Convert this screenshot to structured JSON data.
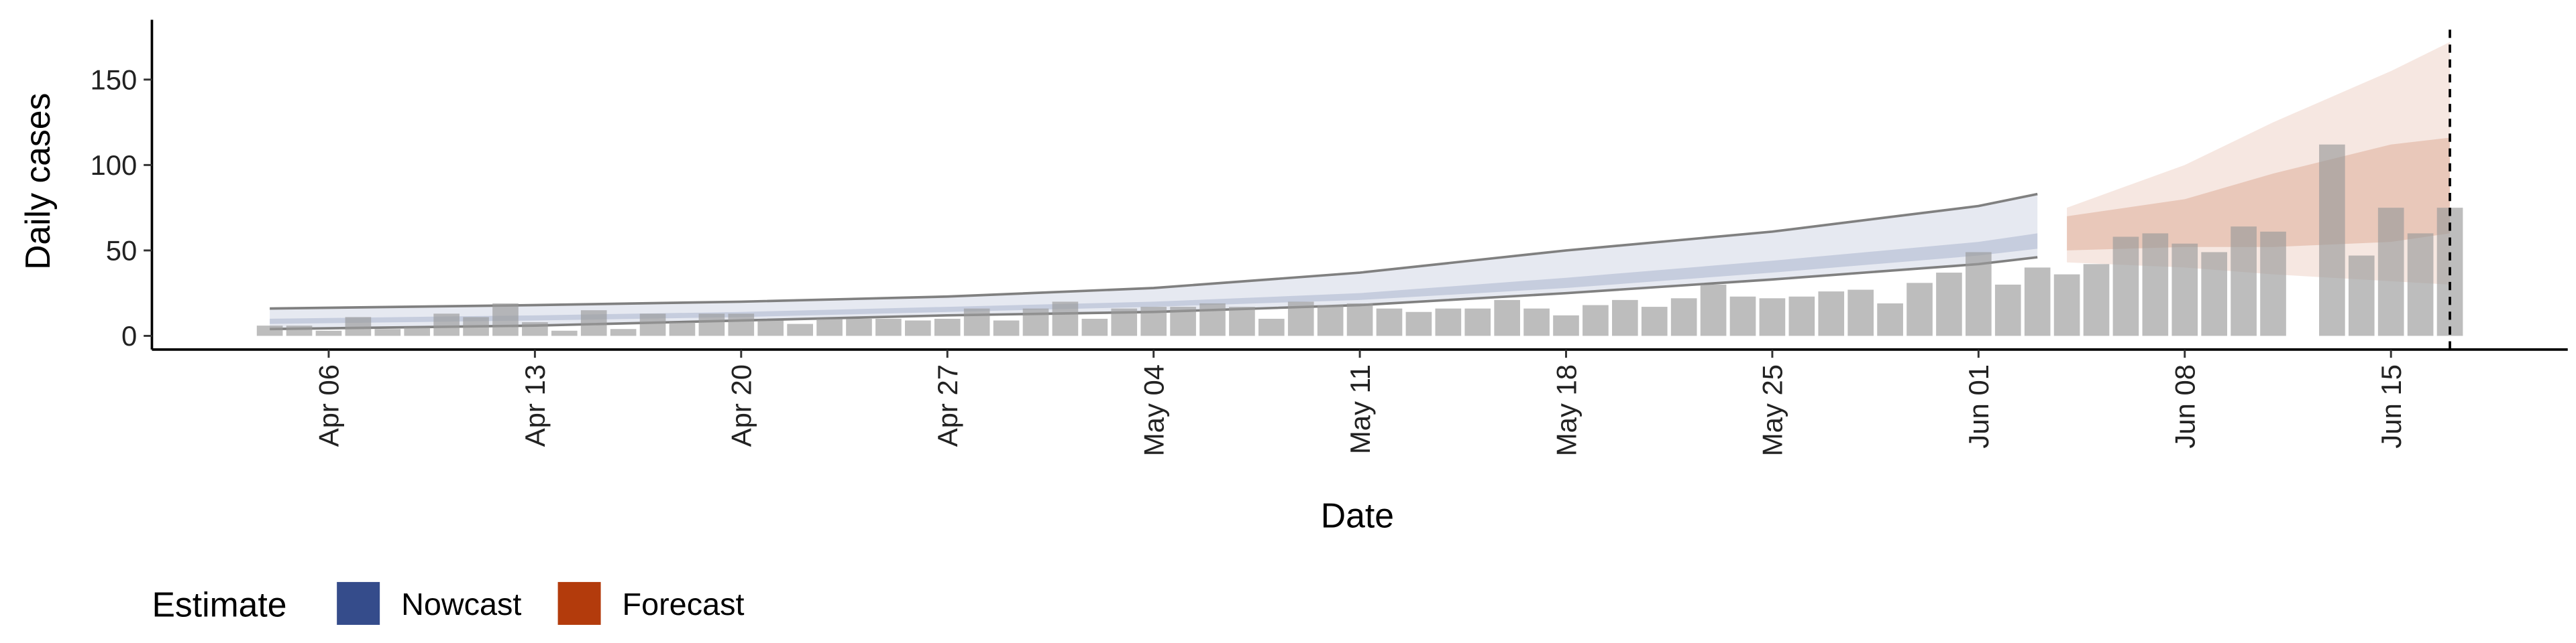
{
  "chart_data": {
    "type": "bar",
    "x_label": "Date",
    "y_label": "Daily cases",
    "legend_title": "Estimate",
    "legend": "bottom-left",
    "color": "#9a9a9a",
    "x": [
      "Apr 04",
      "Apr 05",
      "Apr 06",
      "Apr 07",
      "Apr 08",
      "Apr 09",
      "Apr 10",
      "Apr 11",
      "Apr 12",
      "Apr 13",
      "Apr 14",
      "Apr 15",
      "Apr 16",
      "Apr 17",
      "Apr 18",
      "Apr 19",
      "Apr 20",
      "Apr 21",
      "Apr 22",
      "Apr 23",
      "Apr 24",
      "Apr 25",
      "Apr 26",
      "Apr 27",
      "Apr 28",
      "Apr 29",
      "Apr 30",
      "May 01",
      "May 02",
      "May 03",
      "May 04",
      "May 05",
      "May 06",
      "May 07",
      "May 08",
      "May 09",
      "May 10",
      "May 11",
      "May 12",
      "May 13",
      "May 14",
      "May 15",
      "May 16",
      "May 17",
      "May 18",
      "May 19",
      "May 20",
      "May 21",
      "May 22",
      "May 23",
      "May 24",
      "May 25",
      "May 26",
      "May 27",
      "May 28",
      "May 29",
      "May 30",
      "May 31",
      "Jun 01",
      "Jun 02",
      "Jun 03",
      "Jun 04",
      "Jun 05",
      "Jun 06",
      "Jun 07",
      "Jun 08",
      "Jun 09",
      "Jun 10",
      "Jun 11",
      "Jun 12",
      "Jun 13",
      "Jun 14",
      "Jun 15",
      "Jun 16",
      "Jun 17"
    ],
    "values": [
      6,
      6,
      3,
      11,
      4,
      5,
      13,
      11,
      19,
      8,
      3,
      15,
      4,
      13,
      8,
      13,
      13,
      9,
      7,
      10,
      10,
      10,
      9,
      10,
      16,
      9,
      16,
      20,
      10,
      16,
      17,
      17,
      19,
      17,
      10,
      20,
      18,
      19,
      16,
      14,
      16,
      16,
      21,
      16,
      12,
      18,
      21,
      17,
      22,
      30,
      23,
      22,
      23,
      26,
      27,
      19,
      31,
      37,
      49,
      30,
      40,
      36,
      42,
      58,
      60,
      54,
      49,
      64,
      61,
      null,
      112,
      47,
      75,
      60,
      75
    ],
    "series": [
      {
        "name": "Nowcast",
        "color": "#354c8b",
        "outline_color": "#808080",
        "x": [
          "Apr 04",
          "Apr 13",
          "Apr 20",
          "Apr 27",
          "May 04",
          "May 11",
          "May 18",
          "May 25",
          "Jun 01",
          "Jun 03"
        ],
        "lower90": [
          4,
          6,
          9,
          12,
          14,
          18,
          25,
          33,
          42,
          46
        ],
        "upper90": [
          16,
          18,
          20,
          23,
          28,
          37,
          50,
          61,
          76,
          83
        ],
        "lower50": [
          7,
          9,
          11,
          14,
          17,
          21,
          28,
          37,
          47,
          51
        ],
        "upper50": [
          10,
          12,
          14,
          17,
          20,
          25,
          34,
          44,
          55,
          60
        ]
      },
      {
        "name": "Forecast",
        "color": "#b33b0c",
        "x": [
          "Jun 04",
          "Jun 08",
          "Jun 11",
          "Jun 15",
          "Jun 17"
        ],
        "lower90": [
          43,
          40,
          36,
          32,
          30
        ],
        "upper90": [
          75,
          100,
          125,
          155,
          172
        ],
        "lower50": [
          50,
          52,
          52,
          55,
          60
        ],
        "upper50": [
          70,
          80,
          95,
          112,
          116
        ]
      }
    ],
    "vline": "Jun 17",
    "xlim": [
      "Mar 31",
      "Jun 21"
    ],
    "xticks": [
      "Apr 06",
      "Apr 13",
      "Apr 20",
      "Apr 27",
      "May 04",
      "May 11",
      "May 18",
      "May 25",
      "Jun 01",
      "Jun 08",
      "Jun 15"
    ],
    "ylim": [
      -8,
      185
    ],
    "yticks": [
      0,
      50,
      100,
      150
    ]
  }
}
